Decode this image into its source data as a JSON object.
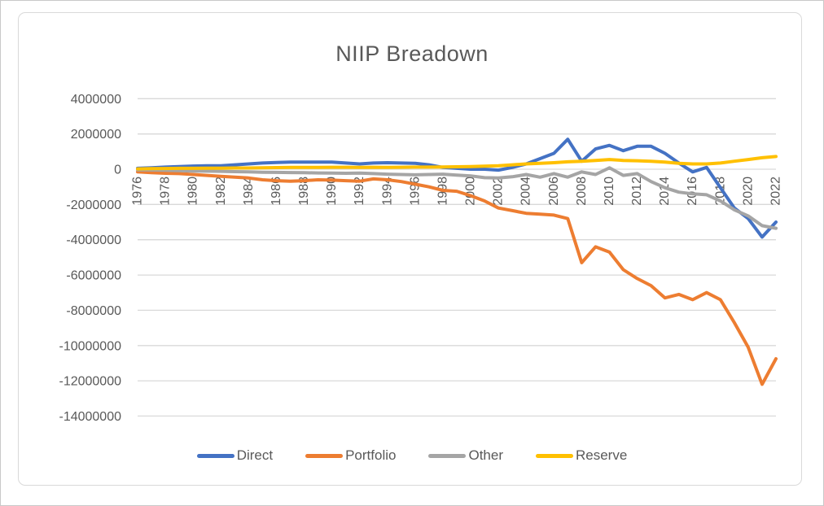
{
  "chart_data": {
    "type": "line",
    "title": "NIIP Breadown",
    "xlabel": "",
    "ylabel": "",
    "grid": true,
    "legend_position": "bottom",
    "axis_text_color": "#595959",
    "gridline_color": "#d9d9d9",
    "ylim": [
      -14000000,
      4000000
    ],
    "y_tick_step": 2000000,
    "y_tick_values": [
      4000000,
      2000000,
      0,
      -2000000,
      -4000000,
      -6000000,
      -8000000,
      -10000000,
      -12000000,
      -14000000
    ],
    "y_tick_labels": [
      "4000000",
      "2000000",
      "0",
      "-2000000",
      "-4000000",
      "-6000000",
      "-8000000",
      "-10000000",
      "-12000000",
      "-14000000"
    ],
    "x_tick_labels": [
      "1976",
      "1978",
      "1980",
      "1982",
      "1984",
      "1986",
      "1988",
      "1990",
      "1992",
      "1994",
      "1996",
      "1998",
      "2000",
      "2002",
      "2004",
      "2006",
      "2008",
      "2010",
      "2012",
      "2014",
      "2016",
      "2018",
      "2020",
      "2022"
    ],
    "x": [
      1976,
      1977,
      1978,
      1979,
      1980,
      1981,
      1982,
      1983,
      1984,
      1985,
      1986,
      1987,
      1988,
      1989,
      1990,
      1991,
      1992,
      1993,
      1994,
      1995,
      1996,
      1997,
      1998,
      1999,
      2000,
      2001,
      2002,
      2003,
      2004,
      2005,
      2006,
      2007,
      2008,
      2009,
      2010,
      2011,
      2012,
      2013,
      2014,
      2015,
      2016,
      2017,
      2018,
      2019,
      2020,
      2021,
      2022
    ],
    "series": [
      {
        "name": "Direct",
        "color": "#4472C4",
        "values": [
          50000,
          80000,
          120000,
          150000,
          180000,
          200000,
          200000,
          250000,
          300000,
          350000,
          380000,
          400000,
          400000,
          400000,
          400000,
          350000,
          300000,
          350000,
          370000,
          350000,
          330000,
          250000,
          100000,
          50000,
          0,
          0,
          -50000,
          100000,
          300000,
          600000,
          900000,
          1700000,
          450000,
          1150000,
          1350000,
          1050000,
          1300000,
          1300000,
          900000,
          350000,
          -150000,
          100000,
          -1050000,
          -2200000,
          -2800000,
          -3850000,
          -3000000
        ]
      },
      {
        "name": "Portfolio",
        "color": "#ED7D31",
        "values": [
          -150000,
          -200000,
          -230000,
          -250000,
          -300000,
          -350000,
          -400000,
          -450000,
          -500000,
          -600000,
          -650000,
          -680000,
          -650000,
          -600000,
          -620000,
          -650000,
          -680000,
          -550000,
          -600000,
          -700000,
          -850000,
          -1000000,
          -1200000,
          -1250000,
          -1500000,
          -1800000,
          -2200000,
          -2350000,
          -2500000,
          -2550000,
          -2600000,
          -2800000,
          -5300000,
          -4400000,
          -4700000,
          -5700000,
          -6200000,
          -6600000,
          -7300000,
          -7100000,
          -7400000,
          -7000000,
          -7400000,
          -8700000,
          -10100000,
          -12200000,
          -10750000
        ]
      },
      {
        "name": "Other",
        "color": "#A5A5A5",
        "values": [
          -30000,
          -40000,
          -60000,
          -80000,
          -100000,
          -110000,
          -120000,
          -140000,
          -150000,
          -170000,
          -180000,
          -190000,
          -200000,
          -210000,
          -220000,
          -230000,
          -220000,
          -250000,
          -280000,
          -300000,
          -320000,
          -300000,
          -280000,
          -330000,
          -380000,
          -480000,
          -500000,
          -430000,
          -300000,
          -450000,
          -250000,
          -450000,
          -150000,
          -300000,
          80000,
          -350000,
          -250000,
          -700000,
          -1050000,
          -1300000,
          -1400000,
          -1450000,
          -1800000,
          -2300000,
          -2650000,
          -3200000,
          -3350000
        ]
      },
      {
        "name": "Reserve",
        "color": "#FFC000",
        "values": [
          20000,
          30000,
          40000,
          50000,
          50000,
          60000,
          60000,
          70000,
          70000,
          80000,
          90000,
          100000,
          100000,
          100000,
          110000,
          110000,
          100000,
          110000,
          100000,
          110000,
          120000,
          120000,
          130000,
          140000,
          150000,
          170000,
          200000,
          250000,
          300000,
          330000,
          370000,
          420000,
          450000,
          500000,
          550000,
          500000,
          480000,
          450000,
          400000,
          330000,
          300000,
          300000,
          350000,
          450000,
          550000,
          650000,
          720000
        ]
      }
    ]
  }
}
